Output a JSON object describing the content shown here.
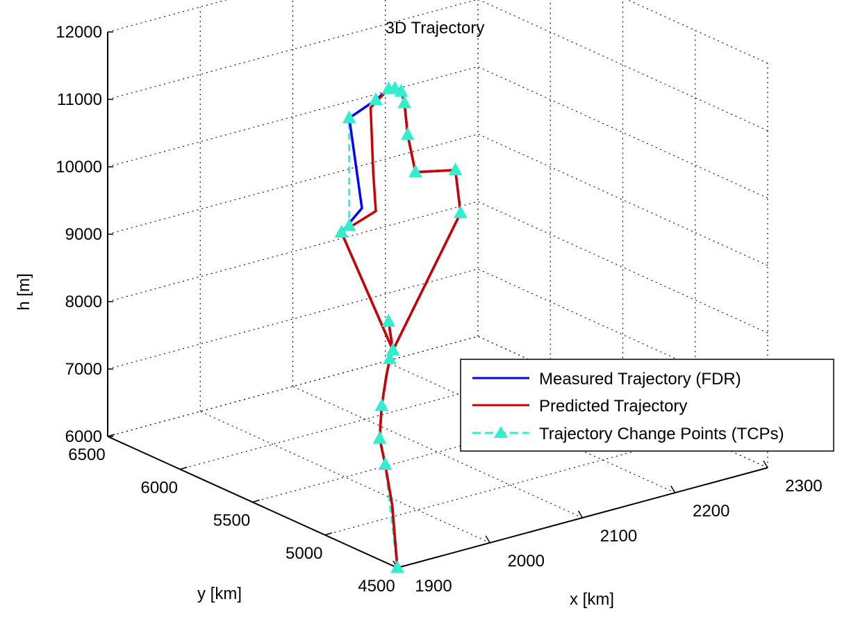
{
  "chart_data": {
    "type": "line3d",
    "title": "3D Trajectory",
    "xlabel": "x [km]",
    "ylabel": "y [km]",
    "zlabel": "h [m]",
    "xlim": [
      1900,
      2300
    ],
    "ylim": [
      4500,
      6500
    ],
    "zlim": [
      6000,
      12000
    ],
    "xticks": [
      1900,
      2000,
      2100,
      2200,
      2300
    ],
    "yticks": [
      4500,
      5000,
      5500,
      6000,
      6500
    ],
    "zticks": [
      6000,
      7000,
      8000,
      9000,
      10000,
      11000,
      12000
    ],
    "grid": true,
    "legend_position": "center-right",
    "series": [
      {
        "name": "Measured Trajectory (FDR)",
        "color": "#0000ff",
        "style": "solid",
        "points": [
          [
            1900,
            4500,
            6000
          ],
          [
            1910,
            4600,
            6800
          ],
          [
            1915,
            4680,
            7300
          ],
          [
            1920,
            4750,
            7600
          ],
          [
            1930,
            4800,
            8000
          ],
          [
            1940,
            4830,
            8400
          ],
          [
            1945,
            4840,
            8600
          ],
          [
            1950,
            4850,
            8700
          ],
          [
            1910,
            4950,
            10500
          ],
          [
            1940,
            5000,
            10700
          ],
          [
            1945,
            5120,
            11900
          ],
          [
            1980,
            5160,
            12000
          ],
          [
            2000,
            5200,
            12050
          ],
          [
            2010,
            5220,
            12000
          ],
          [
            2020,
            5240,
            11900
          ],
          [
            2025,
            5250,
            11700
          ],
          [
            2030,
            5260,
            11200
          ],
          [
            2040,
            5270,
            10600
          ],
          [
            2080,
            5250,
            10500
          ],
          [
            2070,
            5150,
            10000
          ],
          [
            1950,
            4850,
            8700
          ],
          [
            2000,
            5200,
            8600
          ]
        ]
      },
      {
        "name": "Predicted Trajectory",
        "color": "#cc0000",
        "style": "solid",
        "points": [
          [
            1900,
            4500,
            6000
          ],
          [
            1910,
            4600,
            6800
          ],
          [
            1915,
            4680,
            7300
          ],
          [
            1920,
            4750,
            7600
          ],
          [
            1930,
            4800,
            8000
          ],
          [
            1940,
            4830,
            8400
          ],
          [
            1945,
            4840,
            8600
          ],
          [
            1950,
            4850,
            8700
          ],
          [
            1910,
            4950,
            10500
          ],
          [
            1955,
            5000,
            10600
          ],
          [
            1960,
            5050,
            11100
          ],
          [
            1965,
            5100,
            12000
          ],
          [
            2000,
            5200,
            12050
          ],
          [
            2010,
            5220,
            12000
          ],
          [
            2020,
            5240,
            11900
          ],
          [
            2025,
            5250,
            11700
          ],
          [
            2030,
            5260,
            11200
          ],
          [
            2040,
            5270,
            10600
          ],
          [
            2080,
            5250,
            10500
          ],
          [
            2070,
            5150,
            10000
          ],
          [
            1950,
            4850,
            8700
          ],
          [
            2000,
            5200,
            8600
          ]
        ]
      },
      {
        "name": "Trajectory Change Points (TCPs)",
        "color": "#33eecc",
        "style": "dashed",
        "marker": "triangle",
        "points": [
          [
            1900,
            4500,
            6000
          ],
          [
            1915,
            4680,
            7300
          ],
          [
            1920,
            4750,
            7600
          ],
          [
            1930,
            4800,
            8000
          ],
          [
            1945,
            4840,
            8600
          ],
          [
            1950,
            4850,
            8700
          ],
          [
            1910,
            4950,
            10500
          ],
          [
            1920,
            4960,
            10550
          ],
          [
            1945,
            5120,
            11900
          ],
          [
            1980,
            5160,
            12000
          ],
          [
            2000,
            5200,
            12050
          ],
          [
            2010,
            5220,
            12000
          ],
          [
            2020,
            5240,
            11900
          ],
          [
            2025,
            5250,
            11700
          ],
          [
            2030,
            5260,
            11200
          ],
          [
            2040,
            5270,
            10600
          ],
          [
            2080,
            5250,
            10500
          ],
          [
            2070,
            5150,
            10000
          ],
          [
            1950,
            4850,
            8700
          ],
          [
            2000,
            5200,
            8600
          ]
        ]
      }
    ]
  }
}
